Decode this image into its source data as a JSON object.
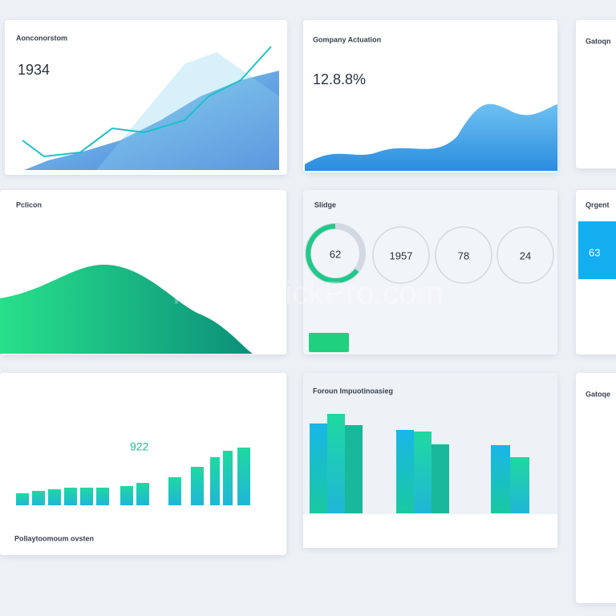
{
  "cards": [
    {
      "title": "Aonconorstom",
      "value": "1934"
    },
    {
      "title": "Gompany Actuation",
      "value": "12.8.8%"
    },
    {
      "title": "Gatoqn"
    },
    {
      "title": "Pclicon"
    },
    {
      "title": "Slidge",
      "gauges": [
        "62",
        "1957",
        "78",
        "24"
      ]
    },
    {
      "title": "Qrgent",
      "value": "63"
    },
    {
      "value": "922",
      "footer": "Pollaytoomoum ovsten"
    },
    {
      "title": "Foroun Impuotinoasieg"
    },
    {
      "title": "Gatoqe"
    }
  ],
  "watermark": "KonardtickPro.com"
}
